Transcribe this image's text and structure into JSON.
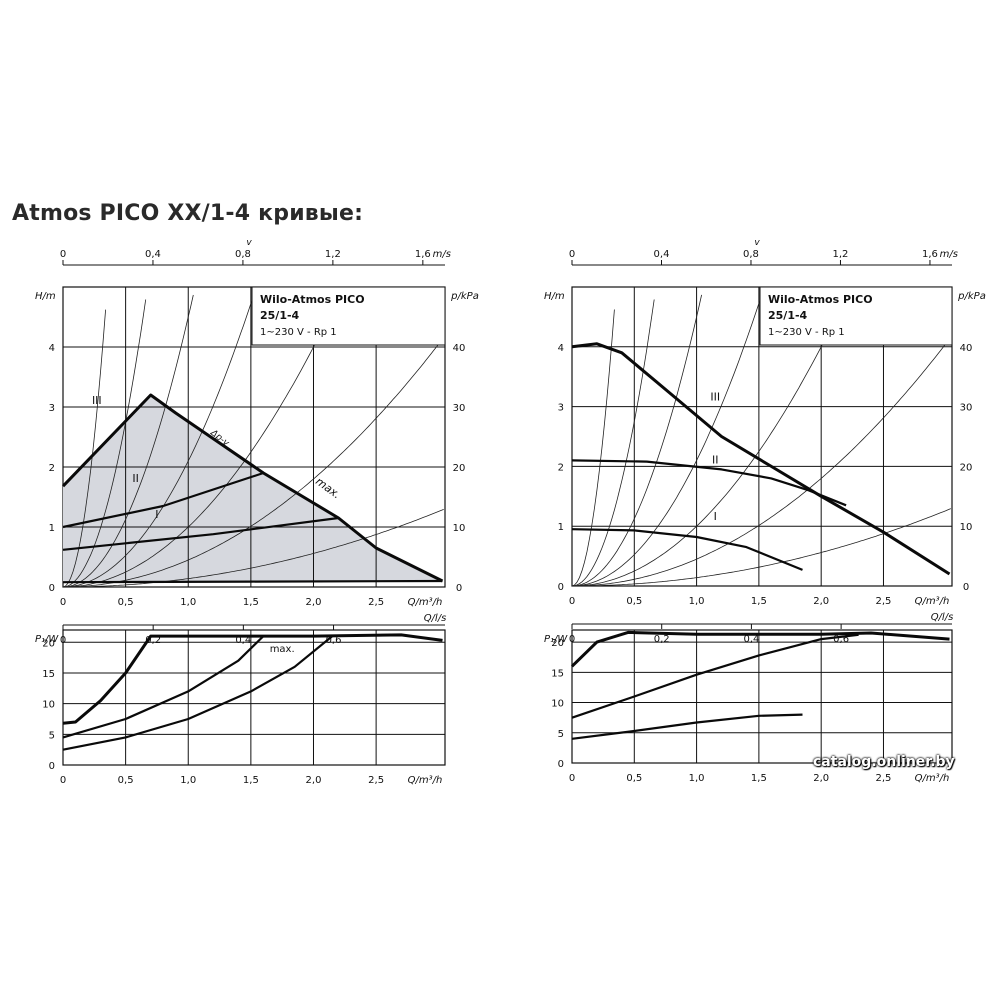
{
  "page_title": "Atmos PICO XX/1-4 кривые:",
  "watermark": "catalog.onliner.by",
  "chart_data": [
    {
      "type": "line",
      "panel": "left-head",
      "description_box": [
        "Wilo-Atmos PICO",
        "25/1-4",
        "1~230 V - Rp 1"
      ],
      "xlabel": "Q/m³/h",
      "ylabel": "H/m",
      "y2label": "p/kPa",
      "top_axis_label": "v",
      "top_axis_unit": "m/s",
      "second_x_label": "Q/l/s",
      "xlim": [
        0,
        3.05
      ],
      "ylim": [
        0,
        5
      ],
      "x_ticks": [
        "0",
        "0,5",
        "1,0",
        "1,5",
        "2,0",
        "2,5"
      ],
      "y_ticks": [
        "0",
        "1",
        "2",
        "3",
        "4"
      ],
      "y2_ticks": [
        "0",
        "10",
        "20",
        "30",
        "40"
      ],
      "v_ticks": [
        "0",
        "0,4",
        "0,8",
        "1,2",
        "1,6"
      ],
      "ls_ticks": [
        "0",
        "0,2",
        "0,4",
        "0,6"
      ],
      "area_label": "Δp-v",
      "series": [
        {
          "name": "III",
          "points": [
            [
              0,
              1.68
            ],
            [
              0.7,
              3.2
            ],
            [
              0.9,
              2.9
            ],
            [
              1.6,
              1.9
            ],
            [
              2.2,
              1.15
            ],
            [
              2.5,
              0.65
            ],
            [
              3.03,
              0.1
            ]
          ]
        },
        {
          "name": "II",
          "points": [
            [
              0,
              1.0
            ],
            [
              0.8,
              1.35
            ],
            [
              1.6,
              1.9
            ]
          ]
        },
        {
          "name": "I",
          "points": [
            [
              0,
              0.62
            ],
            [
              1.2,
              0.88
            ],
            [
              2.2,
              1.15
            ]
          ]
        },
        {
          "name": "max.",
          "points": [
            [
              0,
              0.08
            ],
            [
              1.5,
              0.09
            ],
            [
              3.03,
              0.1
            ]
          ]
        }
      ],
      "series_labels": [
        "III",
        "II",
        "I",
        "max."
      ]
    },
    {
      "type": "line",
      "panel": "left-power",
      "xlabel": "Q/m³/h",
      "ylabel": "P₁/W",
      "xlim": [
        0,
        3.05
      ],
      "ylim": [
        0,
        22
      ],
      "x_ticks": [
        "0",
        "0,5",
        "1,0",
        "1,5",
        "2,0",
        "2,5"
      ],
      "y_ticks": [
        "0",
        "5",
        "10",
        "15",
        "20"
      ],
      "annotation": "max.",
      "series": [
        {
          "name": "III",
          "points": [
            [
              0,
              6.8
            ],
            [
              0.1,
              7.0
            ],
            [
              0.3,
              10.5
            ],
            [
              0.5,
              15.0
            ],
            [
              0.7,
              21.0
            ],
            [
              1.0,
              21.0
            ],
            [
              2.0,
              21.0
            ],
            [
              2.7,
              21.2
            ],
            [
              3.03,
              20.3
            ]
          ]
        },
        {
          "name": "II",
          "points": [
            [
              0,
              4.5
            ],
            [
              0.5,
              7.5
            ],
            [
              1.0,
              12.0
            ],
            [
              1.4,
              17.0
            ],
            [
              1.6,
              21.0
            ]
          ]
        },
        {
          "name": "I",
          "points": [
            [
              0,
              2.5
            ],
            [
              0.5,
              4.5
            ],
            [
              1.0,
              7.5
            ],
            [
              1.5,
              12.0
            ],
            [
              1.85,
              16.0
            ],
            [
              2.15,
              21.0
            ]
          ]
        }
      ]
    },
    {
      "type": "line",
      "panel": "right-head",
      "description_box": [
        "Wilo-Atmos PICO",
        "25/1-4",
        "1~230 V - Rp 1"
      ],
      "xlabel": "Q/m³/h",
      "ylabel": "H/m",
      "y2label": "p/kPa",
      "top_axis_label": "v",
      "top_axis_unit": "m/s",
      "second_x_label": "Q/l/s",
      "xlim": [
        0,
        3.05
      ],
      "ylim": [
        0,
        5
      ],
      "x_ticks": [
        "0",
        "0,5",
        "1,0",
        "1,5",
        "2,0",
        "2,5"
      ],
      "y_ticks": [
        "0",
        "1",
        "2",
        "3",
        "4"
      ],
      "y2_ticks": [
        "0",
        "10",
        "20",
        "30",
        "40"
      ],
      "v_ticks": [
        "0",
        "0,4",
        "0,8",
        "1,2",
        "1,6"
      ],
      "ls_ticks": [
        "0",
        "0,2",
        "0,4",
        "0,6"
      ],
      "series": [
        {
          "name": "III",
          "points": [
            [
              0,
              4.0
            ],
            [
              0.2,
              4.05
            ],
            [
              0.4,
              3.9
            ],
            [
              0.8,
              3.2
            ],
            [
              1.2,
              2.5
            ],
            [
              1.6,
              2.0
            ],
            [
              2.0,
              1.5
            ],
            [
              2.5,
              0.9
            ],
            [
              3.03,
              0.2
            ]
          ]
        },
        {
          "name": "II",
          "points": [
            [
              0,
              2.1
            ],
            [
              0.6,
              2.08
            ],
            [
              1.2,
              1.95
            ],
            [
              1.6,
              1.8
            ],
            [
              1.9,
              1.6
            ],
            [
              2.2,
              1.35
            ]
          ]
        },
        {
          "name": "I",
          "points": [
            [
              0,
              0.95
            ],
            [
              0.5,
              0.93
            ],
            [
              1.0,
              0.82
            ],
            [
              1.4,
              0.65
            ],
            [
              1.85,
              0.27
            ]
          ]
        }
      ],
      "series_labels": [
        "III",
        "II",
        "I"
      ]
    },
    {
      "type": "line",
      "panel": "right-power",
      "xlabel": "Q/m³/h",
      "ylabel": "P₁/W",
      "xlim": [
        0,
        3.05
      ],
      "ylim": [
        0,
        22
      ],
      "x_ticks": [
        "0",
        "0,5",
        "1,0",
        "1,5",
        "2,0",
        "2,5"
      ],
      "y_ticks": [
        "0",
        "5",
        "10",
        "15",
        "20"
      ],
      "series": [
        {
          "name": "III",
          "points": [
            [
              0,
              16.0
            ],
            [
              0.2,
              20.0
            ],
            [
              0.45,
              21.6
            ],
            [
              1.0,
              21.3
            ],
            [
              2.0,
              21.3
            ],
            [
              2.4,
              21.5
            ],
            [
              3.03,
              20.5
            ]
          ]
        },
        {
          "name": "II",
          "points": [
            [
              0,
              7.5
            ],
            [
              0.5,
              11.0
            ],
            [
              1.0,
              14.6
            ],
            [
              1.5,
              17.8
            ],
            [
              2.0,
              20.5
            ],
            [
              2.3,
              21.2
            ]
          ]
        },
        {
          "name": "I",
          "points": [
            [
              0,
              4.0
            ],
            [
              0.5,
              5.3
            ],
            [
              1.0,
              6.7
            ],
            [
              1.5,
              7.8
            ],
            [
              1.85,
              8.0
            ]
          ]
        }
      ]
    }
  ]
}
